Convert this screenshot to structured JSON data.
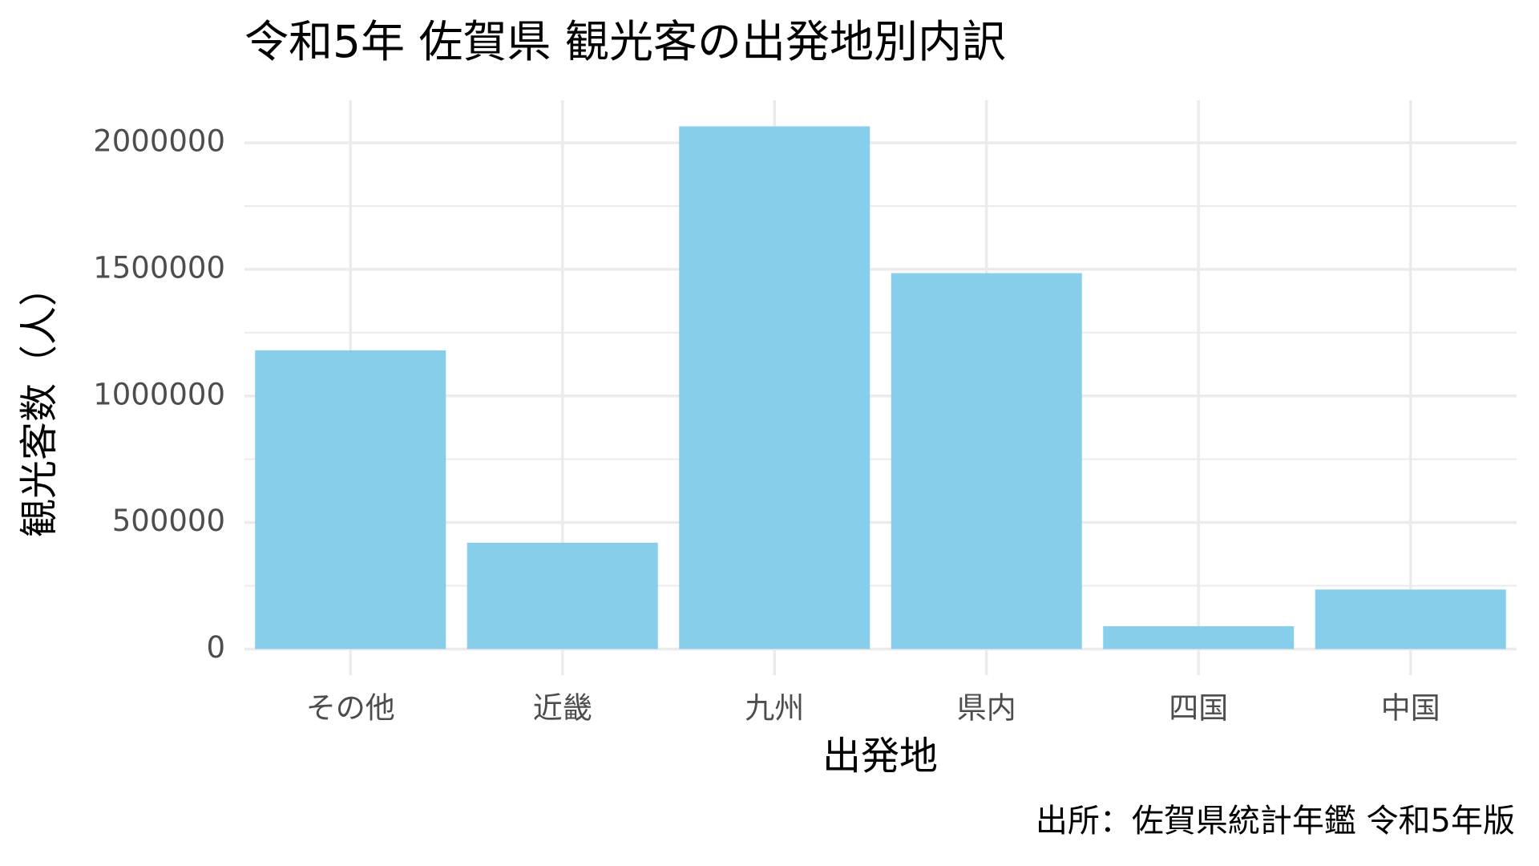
{
  "chart_data": {
    "type": "bar",
    "title": "令和5年 佐賀県 観光客の出発地別内訳",
    "x_label": "出発地",
    "y_label": "観光客数（人）",
    "caption": "出所：佐賀県統計年鑑 令和5年版",
    "categories": [
      "その他",
      "近畿",
      "九州",
      "県内",
      "四国",
      "中国"
    ],
    "values": [
      1180000,
      420000,
      2065000,
      1485000,
      90000,
      235000
    ],
    "color": "#87CEEB",
    "ylim": [
      -103250,
      2168250
    ],
    "yticks": [
      0,
      500000,
      1000000,
      1500000,
      2000000
    ],
    "minor_yticks": [
      250000,
      750000,
      1250000,
      1750000
    ],
    "grid": true
  }
}
